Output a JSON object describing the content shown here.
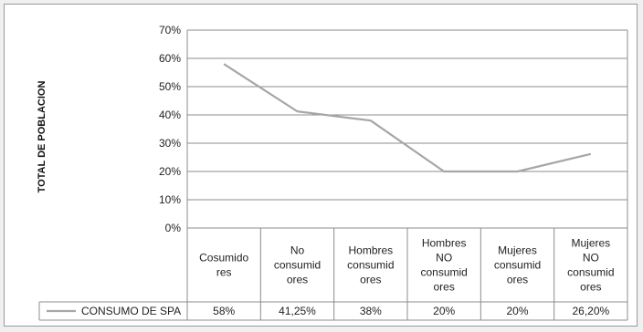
{
  "chart_data": {
    "type": "line",
    "ylabel": "TOTAL DE POBLACION",
    "xlabel": "",
    "ylim": [
      0,
      70
    ],
    "yticks": [
      "0%",
      "10%",
      "20%",
      "30%",
      "40%",
      "50%",
      "60%",
      "70%"
    ],
    "grid": true,
    "categories": [
      [
        "Cosumido",
        "res"
      ],
      [
        "No",
        "consumid",
        "ores"
      ],
      [
        "Hombres",
        "consumid",
        "ores"
      ],
      [
        "Hombres",
        "NO",
        "consumid",
        "ores"
      ],
      [
        "Mujeres",
        "consumid",
        "ores"
      ],
      [
        "Mujeres",
        "NO",
        "consumid",
        "ores"
      ]
    ],
    "series": [
      {
        "name": "CONSUMO DE SPA",
        "values": [
          58,
          41.25,
          38,
          20,
          20,
          26.2
        ],
        "labels": [
          "58%",
          "41,25%",
          "38%",
          "20%",
          "20%",
          "26,20%"
        ],
        "color": "#a6a6a6"
      }
    ],
    "legend": "data-table"
  }
}
